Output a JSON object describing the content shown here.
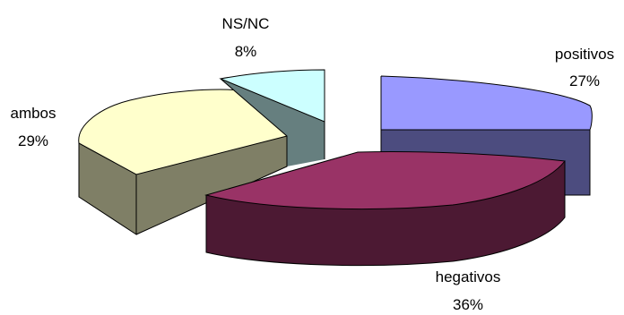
{
  "chart_data": {
    "type": "pie",
    "style": "3d-exploded",
    "title": "",
    "slices": [
      {
        "label": "positivos",
        "percent_label": "27%",
        "value": 27,
        "color": "#9999ff",
        "side_color": "#4c4c7f"
      },
      {
        "label": "hegativos",
        "percent_label": "36%",
        "value": 36,
        "color": "#993366",
        "side_color": "#4c1933"
      },
      {
        "label": "ambos",
        "percent_label": "29%",
        "value": 29,
        "color": "#ffffcc",
        "side_color": "#7f7f66"
      },
      {
        "label": "NS/NC",
        "percent_label": "8%",
        "value": 8,
        "color": "#ccffff",
        "side_color": "#667f7f"
      }
    ]
  }
}
